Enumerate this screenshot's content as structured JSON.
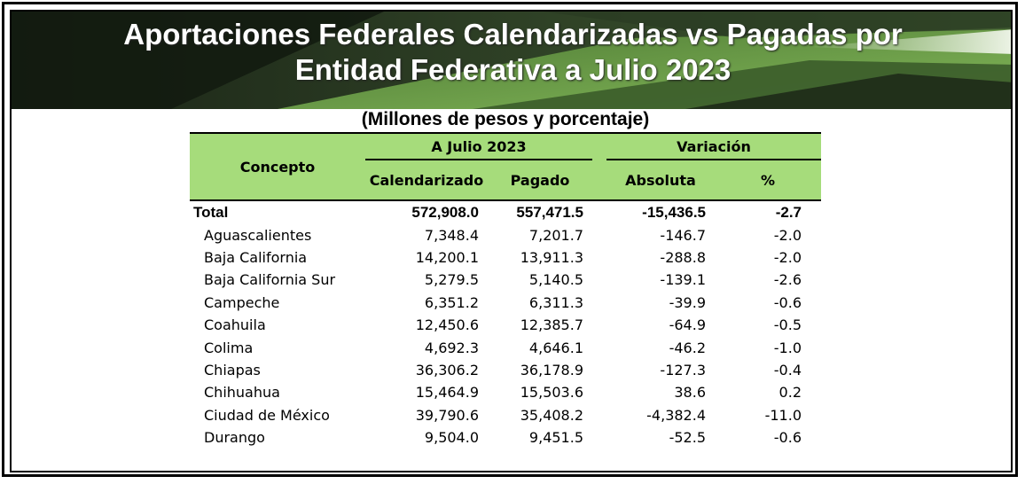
{
  "title": {
    "line1": "Aportaciones Federales Calendarizadas vs Pagadas por",
    "line2": "Entidad Federativa a Julio 2023"
  },
  "subtitle": "(Millones de pesos y porcentaje)",
  "colors": {
    "header_green": "#a6dc7b",
    "banner_dark": "#1e2a1a",
    "banner_green": "#6fa14a"
  },
  "table": {
    "headers": {
      "concepto": "Concepto",
      "group1": "A Julio 2023",
      "group2": "Variación",
      "calendarizado": "Calendarizado",
      "pagado": "Pagado",
      "absoluta": "Absoluta",
      "pct": "%"
    },
    "total": {
      "name": "Total",
      "calendarizado": "572,908.0",
      "pagado": "557,471.5",
      "absoluta": "-15,436.5",
      "pct": "-2.7"
    },
    "rows": [
      {
        "name": "Aguascalientes",
        "calendarizado": "7,348.4",
        "pagado": "7,201.7",
        "absoluta": "-146.7",
        "pct": "-2.0"
      },
      {
        "name": "Baja California",
        "calendarizado": "14,200.1",
        "pagado": "13,911.3",
        "absoluta": "-288.8",
        "pct": "-2.0"
      },
      {
        "name": "Baja California Sur",
        "calendarizado": "5,279.5",
        "pagado": "5,140.5",
        "absoluta": "-139.1",
        "pct": "-2.6"
      },
      {
        "name": "Campeche",
        "calendarizado": "6,351.2",
        "pagado": "6,311.3",
        "absoluta": "-39.9",
        "pct": "-0.6"
      },
      {
        "name": "Coahuila",
        "calendarizado": "12,450.6",
        "pagado": "12,385.7",
        "absoluta": "-64.9",
        "pct": "-0.5"
      },
      {
        "name": "Colima",
        "calendarizado": "4,692.3",
        "pagado": "4,646.1",
        "absoluta": "-46.2",
        "pct": "-1.0"
      },
      {
        "name": "Chiapas",
        "calendarizado": "36,306.2",
        "pagado": "36,178.9",
        "absoluta": "-127.3",
        "pct": "-0.4"
      },
      {
        "name": "Chihuahua",
        "calendarizado": "15,464.9",
        "pagado": "15,503.6",
        "absoluta": "38.6",
        "pct": "0.2"
      },
      {
        "name": "Ciudad de México",
        "calendarizado": "39,790.6",
        "pagado": "35,408.2",
        "absoluta": "-4,382.4",
        "pct": "-11.0"
      },
      {
        "name": "Durango",
        "calendarizado": "9,504.0",
        "pagado": "9,451.5",
        "absoluta": "-52.5",
        "pct": "-0.6"
      }
    ]
  }
}
